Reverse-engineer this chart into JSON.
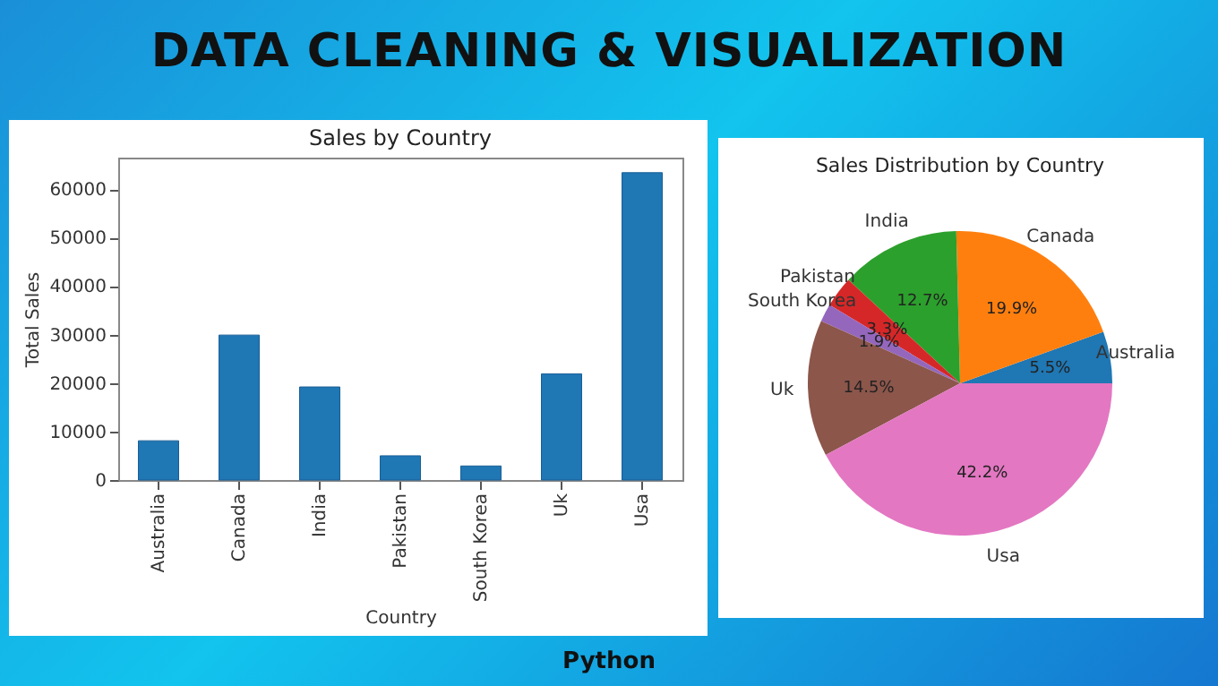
{
  "chart_data": [
    {
      "type": "other",
      "title": "DATA CLEANING & VISUALIZATION",
      "annotations": [
        "Python"
      ]
    },
    {
      "type": "bar",
      "title": "Sales by Country",
      "xlabel": "Country",
      "ylabel": "Total Sales",
      "categories": [
        "Australia",
        "Canada",
        "India",
        "Pakistan",
        "South Korea",
        "Uk",
        "Usa"
      ],
      "values": [
        8100,
        29900,
        19200,
        5000,
        2900,
        21900,
        63400
      ],
      "color": "#1f77b4",
      "ylim": [
        0,
        66500
      ],
      "yticks": [
        0,
        10000,
        20000,
        30000,
        40000,
        50000,
        60000
      ],
      "grid": false,
      "legend": false
    },
    {
      "type": "pie",
      "title": "Sales Distribution by Country",
      "categories": [
        "Australia",
        "Canada",
        "India",
        "Pakistan",
        "South Korea",
        "Uk",
        "Usa"
      ],
      "values": [
        5.5,
        19.9,
        12.7,
        3.3,
        1.9,
        14.5,
        42.2
      ],
      "colors": [
        "#1f77b4",
        "#ff7f0e",
        "#2ca02c",
        "#d62728",
        "#9467bd",
        "#8c564b",
        "#e377c2"
      ],
      "value_labels": [
        "5.5%",
        "19.9%",
        "12.7%",
        "3.3%",
        "1.9%",
        "14.5%",
        "42.2%"
      ],
      "legend": false
    }
  ]
}
